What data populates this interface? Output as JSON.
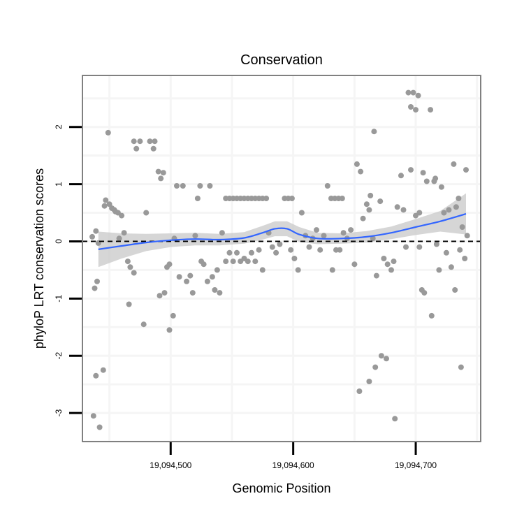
{
  "chart_data": {
    "type": "scatter",
    "title": "Conservation",
    "xlabel": "Genomic Position",
    "ylabel": "phyloP LRT conservation scores",
    "xlim": [
      19094428,
      19094753
    ],
    "ylim": [
      -3.5,
      2.9
    ],
    "x_ticks": [
      {
        "value": 19094500,
        "label": "19,094,500"
      },
      {
        "value": 19094600,
        "label": "19,094,600"
      },
      {
        "value": 19094700,
        "label": "19,094,700"
      }
    ],
    "y_ticks": [
      {
        "value": -3,
        "label": "-3"
      },
      {
        "value": -2,
        "label": "-2"
      },
      {
        "value": -1,
        "label": "-1"
      },
      {
        "value": 0,
        "label": "0"
      },
      {
        "value": 1,
        "label": "1"
      },
      {
        "value": 2,
        "label": "2"
      }
    ],
    "reference_line": {
      "y": 0,
      "style": "dashed",
      "color": "#000000"
    },
    "colors": {
      "points": "#999999",
      "smooth_line": "#3366FF",
      "confidence_band": "#C8C8C8",
      "grid": "#F5F5F5",
      "panel_border": "#808080"
    },
    "series": [
      {
        "name": "scores",
        "points": [
          [
            19094437,
            -3.05
          ],
          [
            19094442,
            -3.25
          ],
          [
            19094439,
            -2.35
          ],
          [
            19094445,
            -2.25
          ],
          [
            19094438,
            -0.82
          ],
          [
            19094440,
            -0.7
          ],
          [
            19094436,
            0.08
          ],
          [
            19094439,
            0.18
          ],
          [
            19094441,
            -0.03
          ],
          [
            19094446,
            0.62
          ],
          [
            19094447,
            0.72
          ],
          [
            19094450,
            0.65
          ],
          [
            19094452,
            0.58
          ],
          [
            19094455,
            0.52
          ],
          [
            19094449,
            1.9
          ],
          [
            19094454,
            0.55
          ],
          [
            19094457,
            0.5
          ],
          [
            19094460,
            0.45
          ],
          [
            19094458,
            0.05
          ],
          [
            19094462,
            0.15
          ],
          [
            19094465,
            -0.35
          ],
          [
            19094467,
            -0.45
          ],
          [
            19094470,
            -0.55
          ],
          [
            19094466,
            -1.1
          ],
          [
            19094470,
            1.75
          ],
          [
            19094472,
            1.62
          ],
          [
            19094475,
            1.75
          ],
          [
            19094478,
            -1.45
          ],
          [
            19094480,
            0.5
          ],
          [
            19094483,
            1.75
          ],
          [
            19094486,
            1.62
          ],
          [
            19094487,
            1.75
          ],
          [
            19094490,
            1.22
          ],
          [
            19094492,
            1.1
          ],
          [
            19094494,
            1.2
          ],
          [
            19094491,
            -0.95
          ],
          [
            19094495,
            -0.9
          ],
          [
            19094497,
            -0.45
          ],
          [
            19094499,
            -0.4
          ],
          [
            19094499,
            -1.55
          ],
          [
            19094502,
            -1.3
          ],
          [
            19094503,
            0.05
          ],
          [
            19094505,
            0.97
          ],
          [
            19094507,
            -0.62
          ],
          [
            19094510,
            0.97
          ],
          [
            19094513,
            -0.7
          ],
          [
            19094516,
            -0.6
          ],
          [
            19094518,
            -0.9
          ],
          [
            19094520,
            0.1
          ],
          [
            19094522,
            0.75
          ],
          [
            19094524,
            0.97
          ],
          [
            19094525,
            -0.35
          ],
          [
            19094527,
            -0.4
          ],
          [
            19094530,
            -0.7
          ],
          [
            19094532,
            0.97
          ],
          [
            19094534,
            -0.62
          ],
          [
            19094536,
            -0.85
          ],
          [
            19094538,
            -0.5
          ],
          [
            19094540,
            -0.9
          ],
          [
            19094542,
            0.15
          ],
          [
            19094545,
            0.75
          ],
          [
            19094548,
            0.75
          ],
          [
            19094551,
            0.75
          ],
          [
            19094554,
            0.75
          ],
          [
            19094557,
            0.75
          ],
          [
            19094560,
            0.75
          ],
          [
            19094563,
            0.75
          ],
          [
            19094566,
            0.75
          ],
          [
            19094569,
            0.75
          ],
          [
            19094572,
            0.75
          ],
          [
            19094575,
            0.75
          ],
          [
            19094578,
            0.75
          ],
          [
            19094545,
            -0.35
          ],
          [
            19094548,
            -0.2
          ],
          [
            19094551,
            -0.35
          ],
          [
            19094554,
            -0.2
          ],
          [
            19094557,
            -0.35
          ],
          [
            19094560,
            -0.3
          ],
          [
            19094563,
            -0.35
          ],
          [
            19094566,
            -0.2
          ],
          [
            19094569,
            -0.35
          ],
          [
            19094572,
            -0.15
          ],
          [
            19094575,
            -0.5
          ],
          [
            19094580,
            0.15
          ],
          [
            19094583,
            -0.1
          ],
          [
            19094586,
            -0.2
          ],
          [
            19094589,
            -0.05
          ],
          [
            19094593,
            0.75
          ],
          [
            19094596,
            0.75
          ],
          [
            19094599,
            0.75
          ],
          [
            19094598,
            -0.15
          ],
          [
            19094601,
            -0.3
          ],
          [
            19094604,
            -0.5
          ],
          [
            19094607,
            0.5
          ],
          [
            19094610,
            0.1
          ],
          [
            19094613,
            -0.1
          ],
          [
            19094616,
            0.05
          ],
          [
            19094619,
            0.2
          ],
          [
            19094622,
            -0.15
          ],
          [
            19094625,
            0.1
          ],
          [
            19094628,
            0.97
          ],
          [
            19094631,
            0.75
          ],
          [
            19094634,
            0.75
          ],
          [
            19094637,
            0.75
          ],
          [
            19094640,
            0.75
          ],
          [
            19094632,
            -0.5
          ],
          [
            19094635,
            -0.15
          ],
          [
            19094638,
            -0.15
          ],
          [
            19094641,
            0.15
          ],
          [
            19094644,
            0.05
          ],
          [
            19094647,
            0.2
          ],
          [
            19094650,
            -0.4
          ],
          [
            19094652,
            1.35
          ],
          [
            19094655,
            1.22
          ],
          [
            19094657,
            0.4
          ],
          [
            19094660,
            0.65
          ],
          [
            19094662,
            0.55
          ],
          [
            19094663,
            0.8
          ],
          [
            19094666,
            1.92
          ],
          [
            19094654,
            -2.62
          ],
          [
            19094662,
            -2.45
          ],
          [
            19094667,
            -2.2
          ],
          [
            19094672,
            -2.0
          ],
          [
            19094676,
            -2.05
          ],
          [
            19094683,
            -3.1
          ],
          [
            19094665,
            0.05
          ],
          [
            19094668,
            -0.6
          ],
          [
            19094671,
            0.7
          ],
          [
            19094674,
            -0.3
          ],
          [
            19094677,
            -0.4
          ],
          [
            19094680,
            -0.5
          ],
          [
            19094682,
            -0.35
          ],
          [
            19094685,
            0.6
          ],
          [
            19094688,
            1.15
          ],
          [
            19094690,
            0.55
          ],
          [
            19094692,
            -0.1
          ],
          [
            19094694,
            2.6
          ],
          [
            19094696,
            2.35
          ],
          [
            19094698,
            2.6
          ],
          [
            19094700,
            2.3
          ],
          [
            19094702,
            2.55
          ],
          [
            19094703,
            -0.1
          ],
          [
            19094705,
            -0.85
          ],
          [
            19094707,
            -0.9
          ],
          [
            19094696,
            1.25
          ],
          [
            19094700,
            0.45
          ],
          [
            19094703,
            0.5
          ],
          [
            19094706,
            1.2
          ],
          [
            19094709,
            1.05
          ],
          [
            19094712,
            2.3
          ],
          [
            19094713,
            -1.3
          ],
          [
            19094715,
            1.05
          ],
          [
            19094717,
            -0.05
          ],
          [
            19094719,
            -0.5
          ],
          [
            19094721,
            0.95
          ],
          [
            19094723,
            0.5
          ],
          [
            19094725,
            -0.2
          ],
          [
            19094727,
            0.55
          ],
          [
            19094729,
            -0.45
          ],
          [
            19094731,
            1.35
          ],
          [
            19094733,
            0.6
          ],
          [
            19094735,
            0.75
          ],
          [
            19094736,
            -0.15
          ],
          [
            19094737,
            -2.2
          ],
          [
            19094738,
            0.25
          ],
          [
            19094740,
            -0.3
          ],
          [
            19094741,
            1.25
          ],
          [
            19094742,
            0.1
          ],
          [
            19094732,
            -0.85
          ],
          [
            19094716,
            1.1
          ]
        ]
      }
    ],
    "smooth": {
      "x": [
        19094441,
        19094460,
        19094480,
        19094500,
        19094520,
        19094540,
        19094560,
        19094575,
        19094585,
        19094595,
        19094605,
        19094620,
        19094640,
        19094660,
        19094680,
        19094700,
        19094720,
        19094741
      ],
      "y": [
        -0.14,
        -0.08,
        -0.02,
        0.02,
        0.04,
        0.03,
        0.06,
        0.15,
        0.22,
        0.22,
        0.12,
        0.05,
        0.05,
        0.08,
        0.15,
        0.25,
        0.35,
        0.48
      ],
      "lower": [
        -0.45,
        -0.3,
        -0.17,
        -0.1,
        -0.07,
        -0.07,
        -0.04,
        0.03,
        0.09,
        0.09,
        -0.01,
        -0.05,
        -0.04,
        -0.02,
        0.04,
        0.11,
        0.17,
        0.12
      ],
      "upper": [
        0.17,
        0.14,
        0.13,
        0.14,
        0.15,
        0.13,
        0.16,
        0.27,
        0.35,
        0.35,
        0.25,
        0.15,
        0.14,
        0.18,
        0.26,
        0.39,
        0.53,
        0.84
      ]
    }
  }
}
